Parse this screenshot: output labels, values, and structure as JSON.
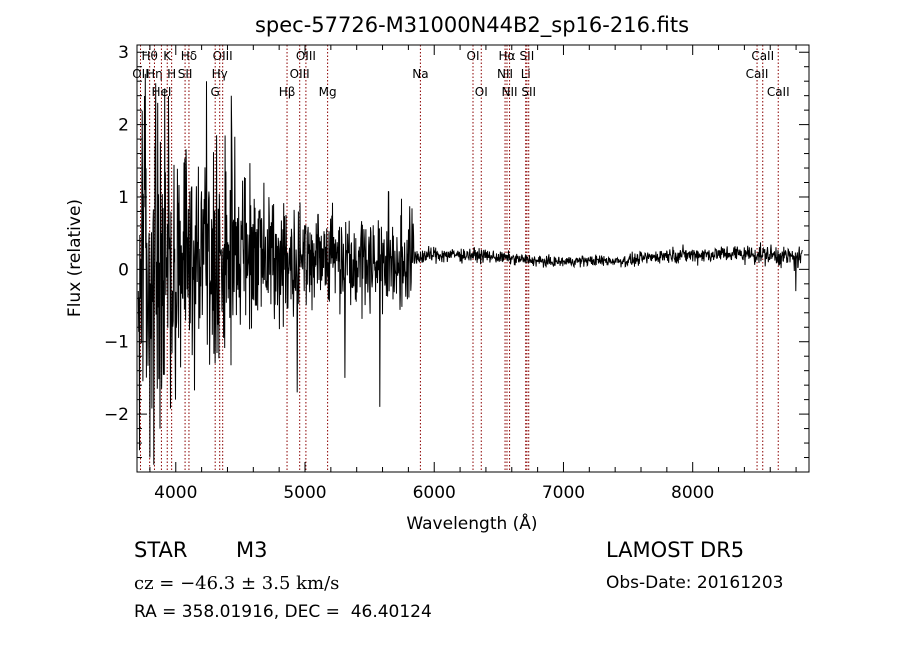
{
  "chart_data": {
    "type": "line",
    "title": "spec-57726-M31000N44B2_sp16-216.fits",
    "xlabel": "Wavelength (Å)",
    "ylabel": "Flux (relative)",
    "xlim": [
      3700,
      8900
    ],
    "ylim": [
      -2.8,
      3.1
    ],
    "x_ticks": [
      4000,
      5000,
      6000,
      7000,
      8000
    ],
    "y_ticks": [
      -2,
      -1,
      0,
      1,
      2,
      3
    ],
    "x_tick_labels": [
      "4000",
      "5000",
      "6000",
      "7000",
      "8000"
    ],
    "y_tick_labels": [
      "−2",
      "−1",
      "0",
      "1",
      "2",
      "3"
    ],
    "line_color": "#000000",
    "marker_color": "#8b0000",
    "spectrum_knots": [
      [
        3700,
        0.0
      ],
      [
        3750,
        0.2
      ],
      [
        3800,
        0.1
      ],
      [
        3900,
        0.2
      ],
      [
        4000,
        0.1
      ],
      [
        4200,
        0.15
      ],
      [
        4400,
        0.2
      ],
      [
        4600,
        0.2
      ],
      [
        4800,
        0.15
      ],
      [
        5000,
        0.2
      ],
      [
        5200,
        0.2
      ],
      [
        5400,
        0.15
      ],
      [
        5600,
        0.1
      ],
      [
        5800,
        0.15
      ],
      [
        6000,
        0.2
      ],
      [
        6300,
        0.2
      ],
      [
        6600,
        0.15
      ],
      [
        6900,
        0.1
      ],
      [
        7200,
        0.12
      ],
      [
        7500,
        0.12
      ],
      [
        7800,
        0.2
      ],
      [
        8000,
        0.2
      ],
      [
        8300,
        0.22
      ],
      [
        8600,
        0.2
      ],
      [
        8850,
        0.15
      ]
    ],
    "noise_knots": [
      [
        3700,
        1.6
      ],
      [
        3900,
        1.8
      ],
      [
        4100,
        1.3
      ],
      [
        4400,
        1.2
      ],
      [
        4700,
        0.8
      ],
      [
        5000,
        0.7
      ],
      [
        5300,
        0.55
      ],
      [
        5600,
        0.6
      ],
      [
        5830,
        0.6
      ],
      [
        5860,
        0.1
      ],
      [
        6500,
        0.07
      ],
      [
        7000,
        0.06
      ],
      [
        7500,
        0.07
      ],
      [
        7900,
        0.09
      ],
      [
        8300,
        0.1
      ],
      [
        8850,
        0.13
      ]
    ],
    "spikes": [
      {
        "x": 3720,
        "y": -2.5
      },
      {
        "x": 3765,
        "y": 2.7
      },
      {
        "x": 3800,
        "y": -2.6
      },
      {
        "x": 3830,
        "y": -2.7
      },
      {
        "x": 3860,
        "y": 2.3
      },
      {
        "x": 3880,
        "y": -2.2
      },
      {
        "x": 3915,
        "y": 2.5
      },
      {
        "x": 4000,
        "y": -1.8
      },
      {
        "x": 4240,
        "y": 2.6
      },
      {
        "x": 4430,
        "y": 2.4
      },
      {
        "x": 4940,
        "y": -1.7
      },
      {
        "x": 5310,
        "y": -1.5
      },
      {
        "x": 5580,
        "y": -1.9
      },
      {
        "x": 8800,
        "y": -0.3
      }
    ],
    "lines": [
      {
        "name": "OII",
        "x": 3727,
        "row": 1
      },
      {
        "name": "Hθ",
        "x": 3798,
        "row": 0
      },
      {
        "name": "Hη",
        "x": 3835,
        "row": 1
      },
      {
        "name": "K",
        "x": 3934,
        "row": 0
      },
      {
        "name": "HeI",
        "x": 3889,
        "row": 2
      },
      {
        "name": "H",
        "x": 3968,
        "row": 1
      },
      {
        "name": "Hδ",
        "x": 4102,
        "row": 0
      },
      {
        "name": "SII",
        "x": 4072,
        "row": 1
      },
      {
        "name": "OIII",
        "x": 4363,
        "row": 0
      },
      {
        "name": "Hγ",
        "x": 4340,
        "row": 1
      },
      {
        "name": "G",
        "x": 4305,
        "row": 2
      },
      {
        "name": "Hβ",
        "x": 4861,
        "row": 2
      },
      {
        "name": "OIII",
        "x": 5007,
        "row": 0
      },
      {
        "name": "OIII",
        "x": 4959,
        "row": 1
      },
      {
        "name": "Mg",
        "x": 5175,
        "row": 2
      },
      {
        "name": "Na",
        "x": 5893,
        "row": 1
      },
      {
        "name": "OI",
        "x": 6300,
        "row": 0
      },
      {
        "name": "OI",
        "x": 6364,
        "row": 2
      },
      {
        "name": "Hα",
        "x": 6563,
        "row": 0
      },
      {
        "name": "NII",
        "x": 6548,
        "row": 1
      },
      {
        "name": "NII",
        "x": 6583,
        "row": 2
      },
      {
        "name": "SII",
        "x": 6717,
        "row": 0
      },
      {
        "name": "Li",
        "x": 6708,
        "row": 1
      },
      {
        "name": "SII",
        "x": 6731,
        "row": 2
      },
      {
        "name": "CaII",
        "x": 8542,
        "row": 0
      },
      {
        "name": "CaII",
        "x": 8498,
        "row": 1
      },
      {
        "name": "CaII",
        "x": 8662,
        "row": 2
      }
    ]
  },
  "info": {
    "object_class": "STAR",
    "object_subclass": "M3",
    "cz_text": "cz = −46.3 ± 3.5 km/s",
    "radec_text": "RA = 358.01916, DEC =  46.40124",
    "survey": "LAMOST DR5",
    "obs_date": "Obs-Date: 20161203"
  }
}
